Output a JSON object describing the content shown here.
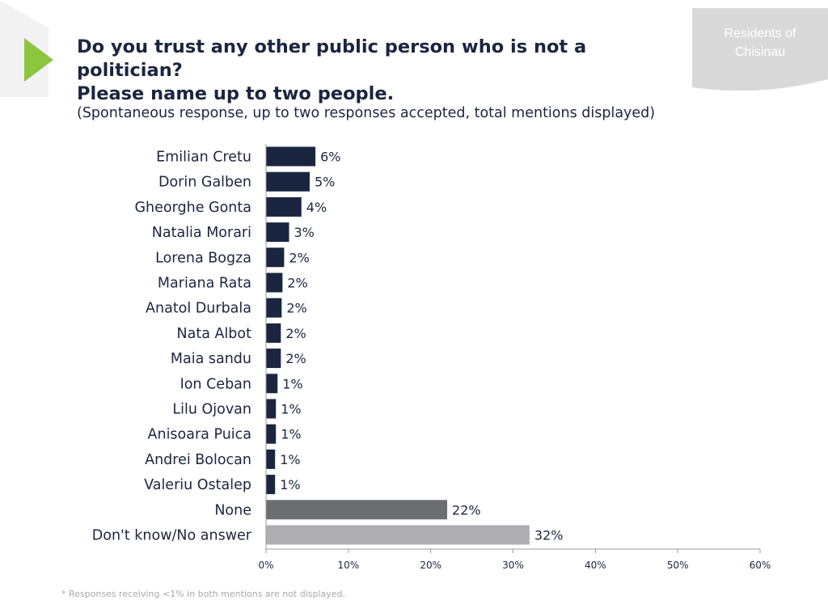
{
  "header": {
    "title_line1": "Do you trust any other public person who is not a politician?",
    "title_line2": "Please name up to two people.",
    "subtitle": "(Spontaneous response, up to two responses accepted, total mentions displayed)",
    "badge_line1": "Residents of",
    "badge_line2": "Chisinau"
  },
  "footnote": "* Responses receiving <1% in both mentions are not displayed.",
  "colors": {
    "accent": "#8cc63f",
    "title": "#1a2640",
    "bar_names": "#1a2640",
    "bar_none": "#6d6e71",
    "bar_dont_know": "#aeadb2",
    "badge": "#d9d9d9"
  },
  "chart_data": {
    "type": "bar",
    "orientation": "horizontal",
    "categories": [
      "Emilian Cretu",
      "Dorin Galben",
      "Gheorghe Gonta",
      "Natalia Morari",
      "Lorena Bogza",
      "Mariana Rata",
      "Anatol Durbala",
      "Nata Albot",
      "Maia sandu",
      "Ion Ceban",
      "Lilu Ojovan",
      "Anisoara Puica",
      "Andrei Bolocan",
      "Valeriu Ostalep",
      "None",
      "Don't know/No answer"
    ],
    "values": [
      6,
      5.3,
      4.3,
      2.8,
      2.2,
      2.0,
      1.9,
      1.8,
      1.8,
      1.4,
      1.2,
      1.2,
      1.1,
      1.1,
      22,
      32
    ],
    "labels": [
      "6%",
      "5%",
      "4%",
      "3%",
      "2%",
      "2%",
      "2%",
      "2%",
      "2%",
      "1%",
      "1%",
      "1%",
      "1%",
      "1%",
      "22%",
      "32%"
    ],
    "bar_colors": [
      "#1a2640",
      "#1a2640",
      "#1a2640",
      "#1a2640",
      "#1a2640",
      "#1a2640",
      "#1a2640",
      "#1a2640",
      "#1a2640",
      "#1a2640",
      "#1a2640",
      "#1a2640",
      "#1a2640",
      "#1a2640",
      "#6d6e71",
      "#aeadb2"
    ],
    "xlim": [
      0,
      60
    ],
    "xticks": [
      0,
      10,
      20,
      30,
      40,
      50,
      60
    ],
    "xtick_labels": [
      "0%",
      "10%",
      "20%",
      "30%",
      "40%",
      "50%",
      "60%"
    ],
    "grid": false,
    "legend": "none"
  }
}
